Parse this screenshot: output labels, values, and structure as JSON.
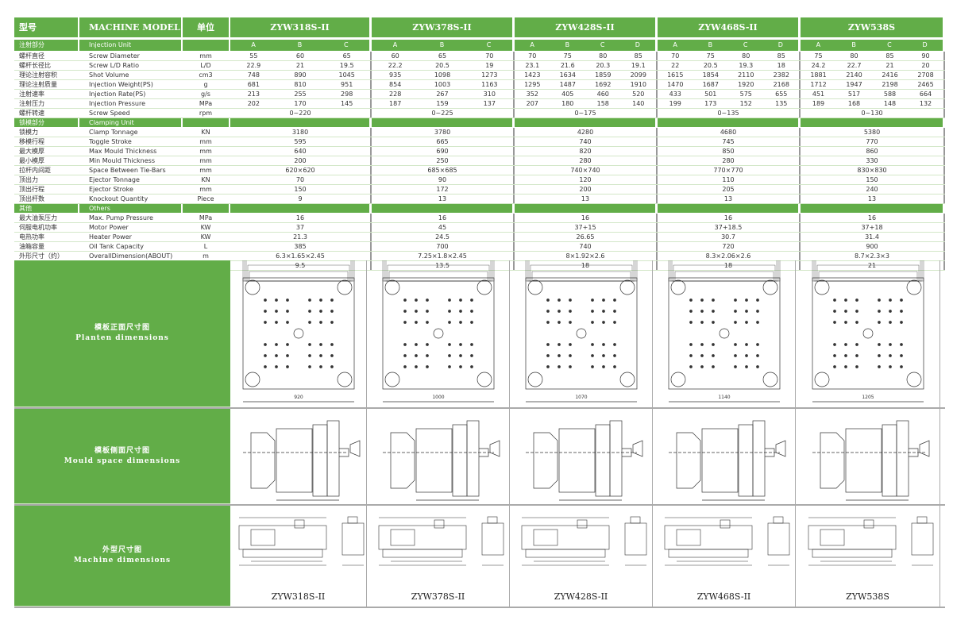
{
  "header": {
    "cn_model": "型号",
    "machine_model": "MACHINE MODEL",
    "cn_unit": "单位"
  },
  "colors": {
    "green": "#62ad48"
  },
  "models": [
    {
      "name": "ZYW318S-II",
      "grades": [
        "A",
        "B",
        "C"
      ]
    },
    {
      "name": "ZYW378S-II",
      "grades": [
        "A",
        "B",
        "C"
      ]
    },
    {
      "name": "ZYW428S-II",
      "grades": [
        "A",
        "B",
        "C",
        "D"
      ]
    },
    {
      "name": "ZYW468S-II",
      "grades": [
        "A",
        "B",
        "C",
        "D"
      ]
    },
    {
      "name": "ZYW538S",
      "grades": [
        "A",
        "B",
        "C",
        "D"
      ]
    }
  ],
  "sections": [
    {
      "cn": "注射部分",
      "en": "Injection Unit",
      "rows": [
        {
          "cn": "螺杆直径",
          "en": "Screw Diameter",
          "unit": "mm",
          "values": [
            [
              "55",
              "60",
              "65"
            ],
            [
              "60",
              "65",
              "70"
            ],
            [
              "70",
              "75",
              "80",
              "85"
            ],
            [
              "70",
              "75",
              "80",
              "85"
            ],
            [
              "75",
              "80",
              "85",
              "90"
            ]
          ]
        },
        {
          "cn": "螺杆长径比",
          "en": "Screw L/D Ratio",
          "unit": "L/D",
          "values": [
            [
              "22.9",
              "21",
              "19.5"
            ],
            [
              "22.2",
              "20.5",
              "19"
            ],
            [
              "23.1",
              "21.6",
              "20.3",
              "19.1"
            ],
            [
              "22",
              "20.5",
              "19.3",
              "18"
            ],
            [
              "24.2",
              "22.7",
              "21",
              "20"
            ]
          ]
        },
        {
          "cn": "理论注射容积",
          "en": "Shot Volume",
          "unit": "cm3",
          "values": [
            [
              "748",
              "890",
              "1045"
            ],
            [
              "935",
              "1098",
              "1273"
            ],
            [
              "1423",
              "1634",
              "1859",
              "2099"
            ],
            [
              "1615",
              "1854",
              "2110",
              "2382"
            ],
            [
              "1881",
              "2140",
              "2416",
              "2708"
            ]
          ]
        },
        {
          "cn": "理论注射质量",
          "en": "Injection Weight(PS)",
          "unit": "g",
          "values": [
            [
              "681",
              "810",
              "951"
            ],
            [
              "854",
              "1003",
              "1163"
            ],
            [
              "1295",
              "1487",
              "1692",
              "1910"
            ],
            [
              "1470",
              "1687",
              "1920",
              "2168"
            ],
            [
              "1712",
              "1947",
              "2198",
              "2465"
            ]
          ]
        },
        {
          "cn": "注射速率",
          "en": "Injection Rate(PS)",
          "unit": "g/s",
          "values": [
            [
              "213",
              "255",
              "298"
            ],
            [
              "228",
              "267",
              "310"
            ],
            [
              "352",
              "405",
              "460",
              "520"
            ],
            [
              "433",
              "501",
              "575",
              "655"
            ],
            [
              "451",
              "517",
              "588",
              "664"
            ]
          ]
        },
        {
          "cn": "注射压力",
          "en": "Injection Pressure",
          "unit": "MPa",
          "values": [
            [
              "202",
              "170",
              "145"
            ],
            [
              "187",
              "159",
              "137"
            ],
            [
              "207",
              "180",
              "158",
              "140"
            ],
            [
              "199",
              "173",
              "152",
              "135"
            ],
            [
              "189",
              "168",
              "148",
              "132"
            ]
          ]
        },
        {
          "cn": "螺杆转速",
          "en": "Screw Speed",
          "unit": "rpm",
          "values": [
            [
              "0~220"
            ],
            [
              "0~225"
            ],
            [
              "0~175"
            ],
            [
              "0~135"
            ],
            [
              "0~130"
            ]
          ]
        }
      ]
    },
    {
      "cn": "锁模部分",
      "en": "Clamping Unit",
      "rows": [
        {
          "cn": "锁模力",
          "en": "Clamp Tonnage",
          "unit": "KN",
          "values": [
            [
              "3180"
            ],
            [
              "3780"
            ],
            [
              "4280"
            ],
            [
              "4680"
            ],
            [
              "5380"
            ]
          ]
        },
        {
          "cn": "移模行程",
          "en": "Toggle Stroke",
          "unit": "mm",
          "values": [
            [
              "595"
            ],
            [
              "665"
            ],
            [
              "740"
            ],
            [
              "745"
            ],
            [
              "770"
            ]
          ]
        },
        {
          "cn": "最大模厚",
          "en": "Max  Mould Thickness",
          "unit": "mm",
          "values": [
            [
              "640"
            ],
            [
              "690"
            ],
            [
              "820"
            ],
            [
              "850"
            ],
            [
              "860"
            ]
          ]
        },
        {
          "cn": "最小模厚",
          "en": "Min  Mould Thickness",
          "unit": "mm",
          "values": [
            [
              "200"
            ],
            [
              "250"
            ],
            [
              "280"
            ],
            [
              "280"
            ],
            [
              "330"
            ]
          ]
        },
        {
          "cn": "拉杆内间距",
          "en": "Space Between Tie-Bars",
          "unit": "mm",
          "values": [
            [
              "620×620"
            ],
            [
              "685×685"
            ],
            [
              "740×740"
            ],
            [
              "770×770"
            ],
            [
              "830×830"
            ]
          ]
        },
        {
          "cn": "顶出力",
          "en": "Ejector Tonnage",
          "unit": "KN",
          "values": [
            [
              "70"
            ],
            [
              "90"
            ],
            [
              "120"
            ],
            [
              "110"
            ],
            [
              "150"
            ]
          ]
        },
        {
          "cn": "顶出行程",
          "en": "Ejector Stroke",
          "unit": "mm",
          "values": [
            [
              "150"
            ],
            [
              "172"
            ],
            [
              "200"
            ],
            [
              "205"
            ],
            [
              "240"
            ]
          ]
        },
        {
          "cn": "顶出杆数",
          "en": "Knockout Quantity",
          "unit": "Piece",
          "values": [
            [
              "9"
            ],
            [
              "13"
            ],
            [
              "13"
            ],
            [
              "13"
            ],
            [
              "13"
            ]
          ]
        }
      ]
    },
    {
      "cn": "其他",
      "en": "Others",
      "rows": [
        {
          "cn": "最大油泵压力",
          "en": "Max. Pump Pressure",
          "unit": "MPa",
          "values": [
            [
              "16"
            ],
            [
              "16"
            ],
            [
              "16"
            ],
            [
              "16"
            ],
            [
              "16"
            ]
          ]
        },
        {
          "cn": "伺服电机功率",
          "en": "Motor Power",
          "unit": "KW",
          "values": [
            [
              "37"
            ],
            [
              "45"
            ],
            [
              "37+15"
            ],
            [
              "37+18.5"
            ],
            [
              "37+18"
            ]
          ]
        },
        {
          "cn": "电热功率",
          "en": "Heater Power",
          "unit": "KW",
          "values": [
            [
              "21.3"
            ],
            [
              "24.5"
            ],
            [
              "26.65"
            ],
            [
              "30.7"
            ],
            [
              "31.4"
            ]
          ]
        },
        {
          "cn": "油箱容量",
          "en": "Oil Tank Capacity",
          "unit": "L",
          "values": [
            [
              "385"
            ],
            [
              "700"
            ],
            [
              "740"
            ],
            [
              "720"
            ],
            [
              "900"
            ]
          ]
        },
        {
          "cn": "外形尺寸（约）",
          "en": "OverallDimension(ABOUT)",
          "unit": "m",
          "values": [
            [
              "6.3×1.65×2.45"
            ],
            [
              "7.25×1.8×2.45"
            ],
            [
              "8×1.92×2.6"
            ],
            [
              "8.3×2.06×2.6"
            ],
            [
              "8.7×2.3×3"
            ]
          ]
        },
        {
          "cn": "机器重量（约）",
          "en": "Machine Weight (ABOUT)",
          "unit": "T",
          "values": [
            [
              "9.5"
            ],
            [
              "13.5"
            ],
            [
              "18"
            ],
            [
              "18"
            ],
            [
              "21"
            ]
          ]
        }
      ]
    }
  ],
  "drawings": [
    {
      "cn": "模板正面尺寸图",
      "en": "Planten dimensions",
      "widths": [
        "920",
        "1000",
        "1070",
        "1140",
        "1205"
      ]
    },
    {
      "cn": "模板侧面尺寸图",
      "en": "Mould space dimensions"
    },
    {
      "cn": "外型尺寸图",
      "en": "Machine dimensions"
    }
  ]
}
